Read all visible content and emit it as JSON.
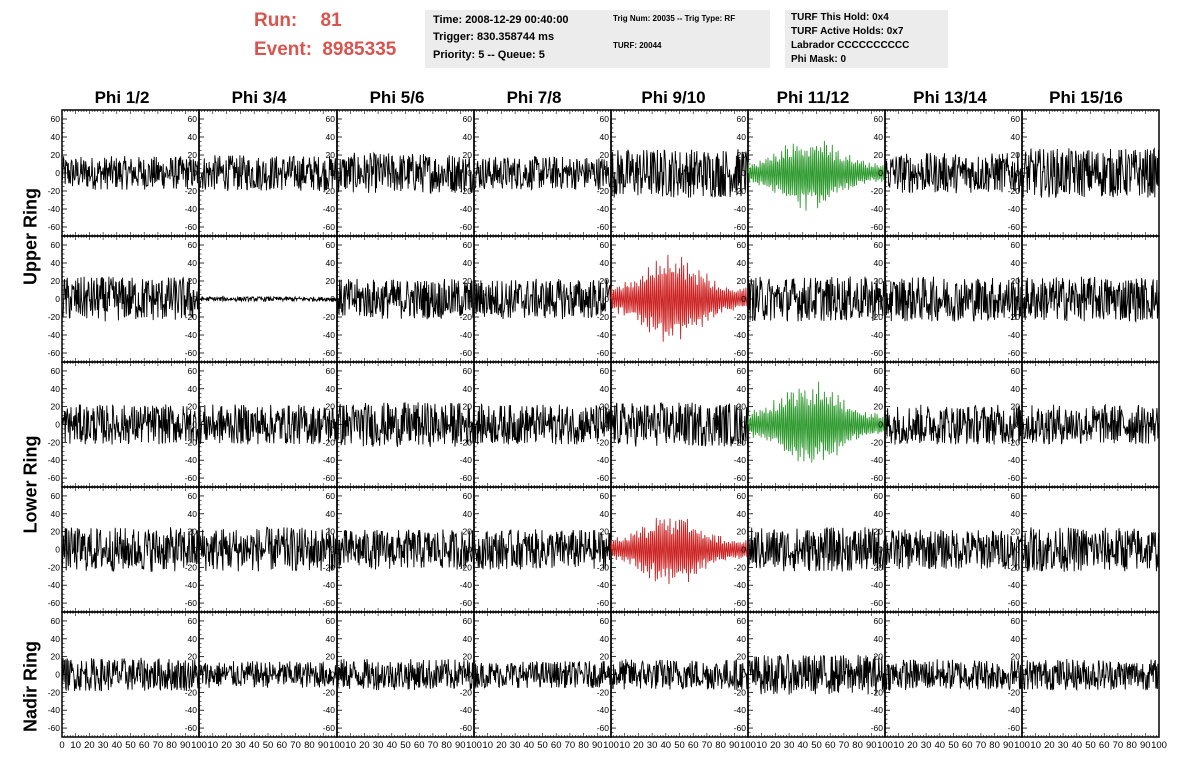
{
  "header": {
    "run_label": "Run:",
    "run_value": "81",
    "event_label": "Event:",
    "event_value": "8985335"
  },
  "info1": {
    "time": "Time: 2008-12-29 00:40:00",
    "trigger": "Trigger: 830.358744 ms",
    "priority": "Priority: 5 -- Queue: 5"
  },
  "info2": {
    "trig": "Trig Num: 20035 -- Trig Type: RF",
    "turf": "TURF: 20044"
  },
  "info3": {
    "hold": "TURF This Hold: 0x4",
    "active": "TURF Active Holds: 0x7",
    "labrador": "Labrador CCCCCCCCCC",
    "mask": "Phi Mask: 0"
  },
  "columns": [
    "Phi 1/2",
    "Phi 3/4",
    "Phi 5/6",
    "Phi 7/8",
    "Phi 9/10",
    "Phi 11/12",
    "Phi 13/14",
    "Phi 15/16"
  ],
  "ring_labels": {
    "upper": "Upper Ring",
    "lower": "Lower Ring",
    "nadir": "Nadir Ring"
  },
  "y_ticks": [
    "60",
    "40",
    "20",
    "0",
    "-20",
    "-40",
    "-60"
  ],
  "x_ticks_first": [
    "0",
    "10",
    "20",
    "30",
    "40",
    "50",
    "60",
    "70",
    "80",
    "90",
    "100"
  ],
  "x_ticks_rest": [
    "10",
    "20",
    "30",
    "40",
    "50",
    "60",
    "70",
    "80",
    "90",
    "100"
  ],
  "colors": {
    "trace": "#000000",
    "triggered_h": "#2e9a2e",
    "triggered_v": "#cc2222",
    "run_text": "#d9534f",
    "info_bg": "#ececec"
  },
  "chart_data": {
    "type": "line",
    "ylim": [
      -70,
      70
    ],
    "xlim": [
      0,
      100
    ],
    "grid": false,
    "rows": 5,
    "cols": 8,
    "panels_amplitude": [
      [
        15,
        16,
        18,
        15,
        22,
        25,
        18,
        22
      ],
      [
        20,
        2,
        18,
        18,
        30,
        20,
        20,
        20
      ],
      [
        18,
        18,
        20,
        18,
        20,
        30,
        18,
        18
      ],
      [
        20,
        20,
        18,
        18,
        25,
        20,
        18,
        20
      ],
      [
        15,
        12,
        14,
        12,
        14,
        18,
        14,
        14
      ]
    ],
    "panel_colors": [
      [
        "trace",
        "trace",
        "trace",
        "trace",
        "trace",
        "triggered_h",
        "trace",
        "trace"
      ],
      [
        "trace",
        "trace",
        "trace",
        "trace",
        "triggered_v",
        "trace",
        "trace",
        "trace"
      ],
      [
        "trace",
        "trace",
        "trace",
        "trace",
        "trace",
        "triggered_h",
        "trace",
        "trace"
      ],
      [
        "trace",
        "trace",
        "trace",
        "trace",
        "triggered_v",
        "trace",
        "trace",
        "trace"
      ],
      [
        "trace",
        "trace",
        "trace",
        "trace",
        "trace",
        "trace",
        "trace",
        "trace"
      ]
    ]
  }
}
